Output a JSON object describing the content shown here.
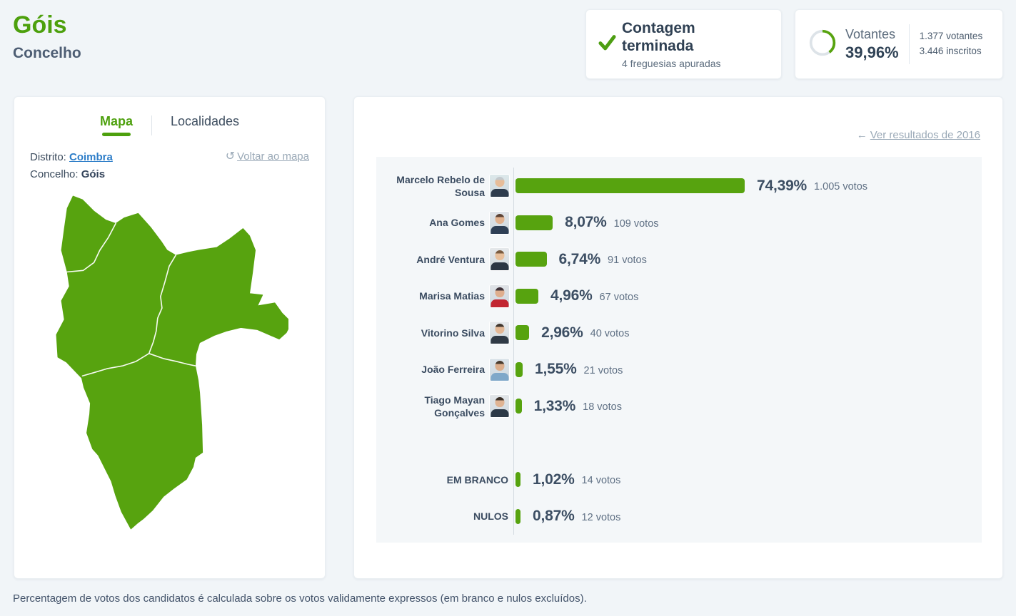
{
  "colors": {
    "green": "#57a30f",
    "title_green": "#4da00d",
    "link_blue": "#2d7dc8",
    "muted_link": "#9aa9b7",
    "page_bg": "#f1f5f8",
    "panel_bg": "#f4f7f9"
  },
  "header": {
    "title": "Góis",
    "subtitle": "Concelho"
  },
  "status_card": {
    "icon": "check",
    "title": "Contagem terminada",
    "subtitle": "4 freguesias apuradas"
  },
  "turnout_card": {
    "icon": "donut-gauge",
    "label": "Votantes",
    "percent_label": "39,96%",
    "percent_value": 39.96,
    "voters": "1.377 votantes",
    "registered": "3.446 inscritos"
  },
  "map_card": {
    "tabs": [
      {
        "label": "Mapa",
        "active": true
      },
      {
        "label": "Localidades",
        "active": false
      }
    ],
    "district_label": "Distrito:",
    "district": "Coimbra",
    "council_label": "Concelho:",
    "council": "Góis",
    "back_icon": "rotate-ccw",
    "back_link": "Voltar ao mapa"
  },
  "results_card": {
    "link_icon": "arrow-left",
    "link_2016": "Ver resultados de 2016",
    "chart_data": {
      "type": "bar",
      "orientation": "horizontal",
      "unit": "percent of valid votes",
      "candidates": [
        {
          "name": "Marcelo Rebelo de Sousa",
          "percent": 74.39,
          "percent_label": "74,39%",
          "votes": 1005,
          "votes_label": "1.005 votos",
          "photo": {
            "abg": "#dce8ea",
            "hair": "#c3c9cd",
            "skin": "#e7bd99",
            "suit": "#2e3c4d"
          }
        },
        {
          "name": "Ana Gomes",
          "percent": 8.07,
          "percent_label": "8,07%",
          "votes": 109,
          "votes_label": "109 votos",
          "photo": {
            "abg": "#dfe3e8",
            "hair": "#5d4336",
            "skin": "#e2b28f",
            "suit": "#2e3f55"
          }
        },
        {
          "name": "André Ventura",
          "percent": 6.74,
          "percent_label": "6,74%",
          "votes": 91,
          "votes_label": "91 votos",
          "photo": {
            "abg": "#e5e8ea",
            "hair": "#7a5b3f",
            "skin": "#e8c09c",
            "suit": "#2b3644"
          }
        },
        {
          "name": "Marisa Matias",
          "percent": 4.96,
          "percent_label": "4,96%",
          "votes": 67,
          "votes_label": "67 votos",
          "photo": {
            "abg": "#dfe2e6",
            "hair": "#3f3238",
            "skin": "#dfae8d",
            "suit": "#c22531"
          }
        },
        {
          "name": "Vitorino Silva",
          "percent": 2.96,
          "percent_label": "2,96%",
          "votes": 40,
          "votes_label": "40 votos",
          "photo": {
            "abg": "#e7eaec",
            "hair": "#43382f",
            "skin": "#e3b896",
            "suit": "#2f3a46"
          }
        },
        {
          "name": "João Ferreira",
          "percent": 1.55,
          "percent_label": "1,55%",
          "votes": 21,
          "votes_label": "21 votos",
          "photo": {
            "abg": "#dce4ea",
            "hair": "#4a3b2e",
            "skin": "#dcae8c",
            "suit": "#7fa8c9"
          }
        },
        {
          "name": "Tiago Mayan Gonçalves",
          "percent": 1.33,
          "percent_label": "1,33%",
          "votes": 18,
          "votes_label": "18 votos",
          "photo": {
            "abg": "#e2e6e9",
            "hair": "#3c3128",
            "skin": "#e0b493",
            "suit": "#2c3947"
          }
        }
      ],
      "others": [
        {
          "name": "EM BRANCO",
          "percent": 1.02,
          "percent_label": "1,02%",
          "votes": 14,
          "votes_label": "14 votos"
        },
        {
          "name": "NULOS",
          "percent": 0.87,
          "percent_label": "0,87%",
          "votes": 12,
          "votes_label": "12 votos"
        }
      ],
      "note": "Percentagem de votos dos candidatos é calculada sobre os votos validamente expressos (em branco e nulos excluídos)."
    }
  },
  "footer": {
    "note": "Percentagem de votos dos candidatos é calculada sobre os votos validamente expressos (em branco e nulos excluídos)."
  }
}
